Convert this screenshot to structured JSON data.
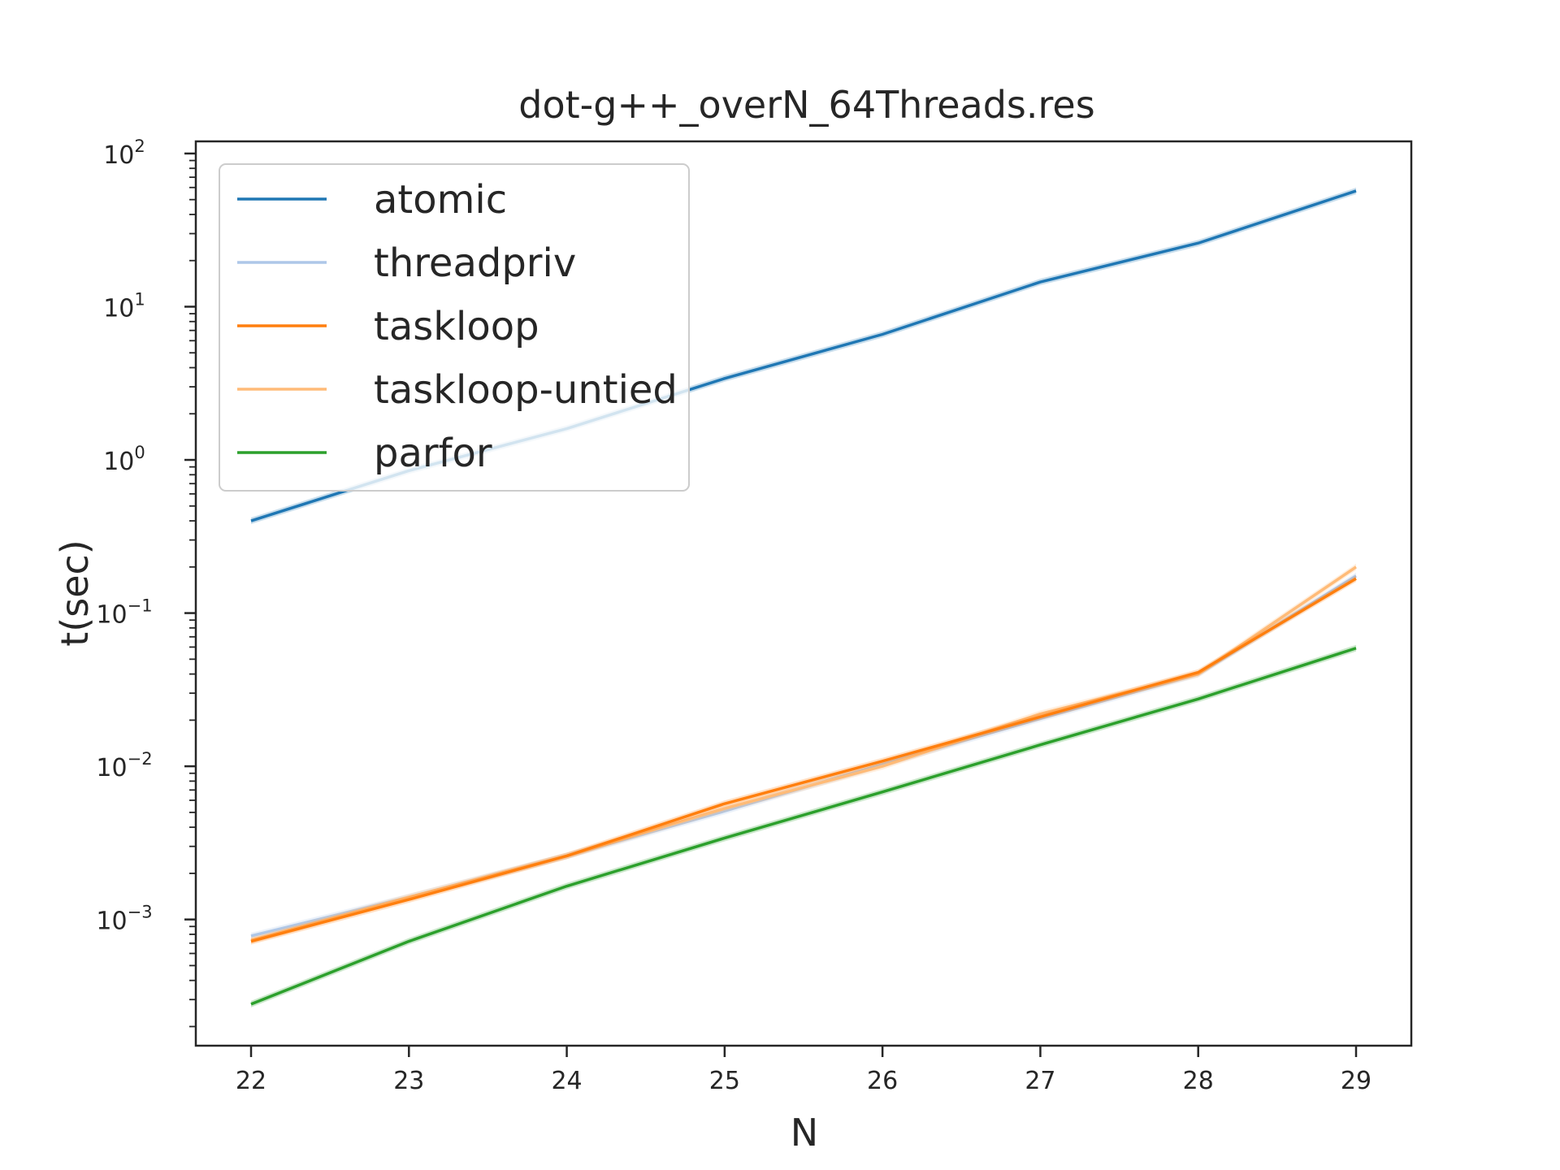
{
  "chart_data": {
    "type": "line",
    "title": "dot-g++_overN_64Threads.res",
    "xlabel": "N",
    "ylabel": "t(sec)",
    "x": [
      22,
      23,
      24,
      25,
      26,
      27,
      28,
      29
    ],
    "xlim": [
      21.65,
      29.35
    ],
    "ylim": [
      0.00015,
      120
    ],
    "yscale": "log",
    "ytick_base": "10",
    "ytick_exponents": [
      "2",
      "1",
      "0",
      "−1",
      "−2",
      "−3"
    ],
    "grid": false,
    "legend_position": "top-left",
    "series": [
      {
        "name": "atomic",
        "color": "#1f77b4",
        "values": [
          0.4,
          0.85,
          1.6,
          3.4,
          6.6,
          14.5,
          26.0,
          57.0
        ]
      },
      {
        "name": "threadpriv",
        "color": "#aec7e8",
        "values": [
          0.00078,
          0.0014,
          0.0026,
          0.0051,
          0.0103,
          0.0205,
          0.04,
          0.175
        ]
      },
      {
        "name": "taskloop",
        "color": "#ff7f0e",
        "values": [
          0.00072,
          0.00135,
          0.0026,
          0.0057,
          0.0108,
          0.021,
          0.041,
          0.168
        ]
      },
      {
        "name": "taskloop-untied",
        "color": "#ffbb78",
        "values": [
          0.00073,
          0.0014,
          0.0026,
          0.0053,
          0.01,
          0.022,
          0.04,
          0.2
        ]
      },
      {
        "name": "parfor",
        "color": "#2ca02c",
        "values": [
          0.00028,
          0.00072,
          0.00165,
          0.0034,
          0.0068,
          0.0138,
          0.0275,
          0.059
        ]
      }
    ]
  }
}
